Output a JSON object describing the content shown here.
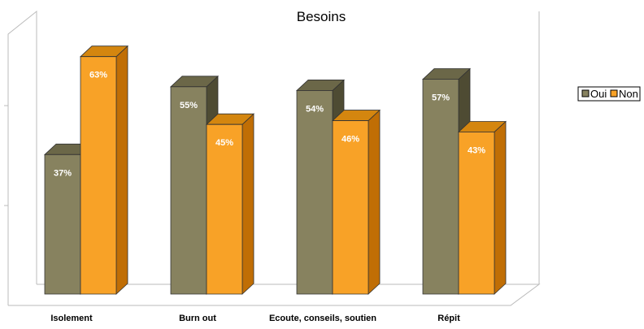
{
  "chart_data": {
    "type": "bar",
    "title": "Besoins",
    "categories": [
      "Isolement",
      "Burn out",
      "Ecoute, conseils, soutien",
      "Répit"
    ],
    "series": [
      {
        "name": "Oui",
        "values": [
          37,
          55,
          54,
          57
        ],
        "labels": [
          "37%",
          "55%",
          "54%",
          "57%"
        ]
      },
      {
        "name": "Non",
        "values": [
          63,
          45,
          46,
          43
        ],
        "labels": [
          "63%",
          "45%",
          "46%",
          "43%"
        ]
      }
    ],
    "ylim": [
      0,
      100
    ],
    "grid": false,
    "legend_position": "right",
    "three_d": true,
    "colors": {
      "oui_front": "#87825F",
      "oui_top": "#6B6748",
      "oui_side": "#4E4B33",
      "non_front": "#F8A227",
      "non_top": "#D4860F",
      "non_side": "#C06E05",
      "outline": "#333333",
      "wall": "#BBBBBB"
    }
  }
}
